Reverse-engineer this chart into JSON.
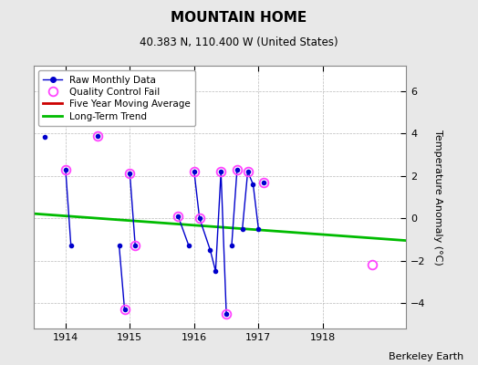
{
  "title": "MOUNTAIN HOME",
  "subtitle": "40.383 N, 110.400 W (United States)",
  "credit": "Berkeley Earth",
  "ylabel": "Temperature Anomaly (°C)",
  "background_color": "#e8e8e8",
  "plot_bg_color": "#ffffff",
  "xlim": [
    1913.5,
    1919.3
  ],
  "ylim": [
    -5.2,
    7.2
  ],
  "yticks": [
    -4,
    -2,
    0,
    2,
    4,
    6
  ],
  "xticks": [
    1914,
    1915,
    1916,
    1917,
    1918
  ],
  "raw_segments": [
    {
      "x": [
        1914.0,
        1914.083
      ],
      "y": [
        2.3,
        -1.3
      ]
    },
    {
      "x": [
        1914.5
      ],
      "y": [
        3.9
      ]
    },
    {
      "x": [
        1914.833,
        1914.917
      ],
      "y": [
        -1.3,
        -4.3
      ]
    },
    {
      "x": [
        1915.0,
        1915.083
      ],
      "y": [
        2.1,
        -1.3
      ]
    },
    {
      "x": [
        1915.75,
        1915.917
      ],
      "y": [
        0.1,
        -1.3
      ]
    },
    {
      "x": [
        1916.0,
        1916.083,
        1916.25,
        1916.333,
        1916.417,
        1916.5
      ],
      "y": [
        2.2,
        0.0,
        -1.5,
        -2.5,
        2.2,
        -4.5
      ]
    },
    {
      "x": [
        1916.583,
        1916.667
      ],
      "y": [
        -1.3,
        2.3
      ]
    },
    {
      "x": [
        1916.75,
        1916.833,
        1916.917,
        1917.0
      ],
      "y": [
        -0.5,
        2.2,
        1.6,
        -0.5
      ]
    },
    {
      "x": [
        1917.083
      ],
      "y": [
        1.7
      ]
    }
  ],
  "extra_dot_x": [
    1913.68
  ],
  "extra_dot_y": [
    3.85
  ],
  "qc_fail_x": [
    1914.0,
    1914.5,
    1914.917,
    1915.0,
    1915.083,
    1915.75,
    1916.0,
    1916.083,
    1916.417,
    1916.5,
    1916.667,
    1916.833,
    1917.083,
    1918.77
  ],
  "qc_fail_y": [
    2.3,
    3.9,
    -4.3,
    2.1,
    -1.3,
    0.1,
    2.2,
    0.0,
    2.2,
    -4.5,
    2.3,
    2.2,
    1.7,
    -2.2
  ],
  "trend_x": [
    1913.5,
    1919.3
  ],
  "trend_y": [
    0.22,
    -1.05
  ],
  "raw_color": "#0000cc",
  "qc_color": "#ff44ff",
  "trend_color": "#00bb00",
  "mavg_color": "#cc0000",
  "title_fontsize": 11,
  "subtitle_fontsize": 8.5,
  "axis_fontsize": 8,
  "credit_fontsize": 8
}
